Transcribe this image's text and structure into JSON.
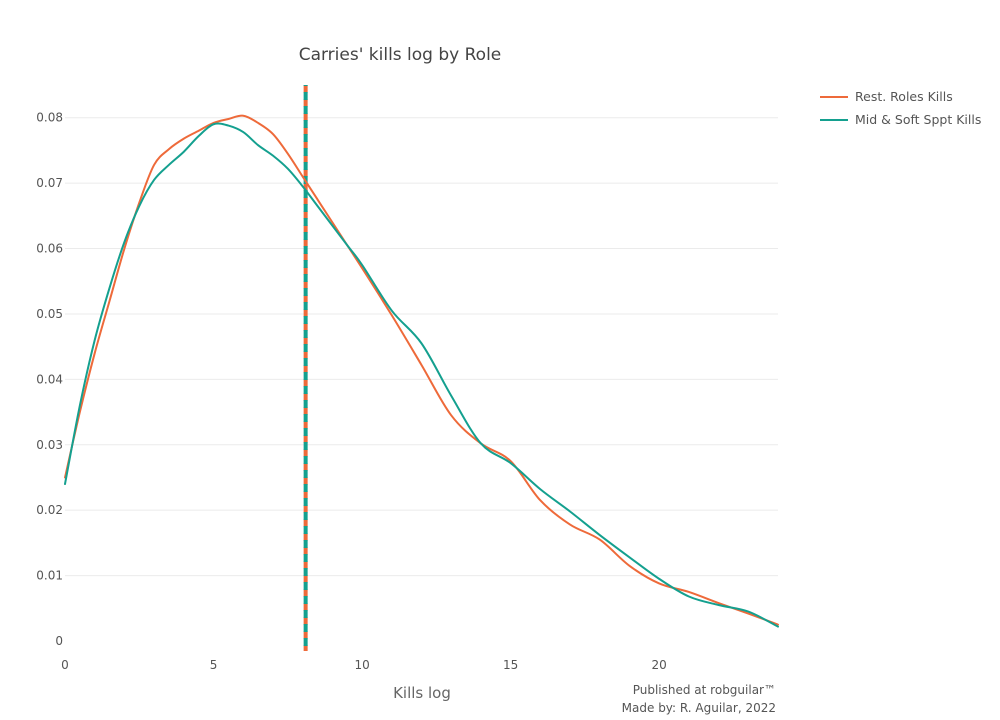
{
  "chart_data": {
    "type": "line",
    "title": "Carries' kills log by Role",
    "xlabel": "Kills log",
    "ylabel": "",
    "xlim": [
      0,
      24
    ],
    "ylim": [
      0,
      0.085
    ],
    "x_ticks": [
      0,
      5,
      10,
      15,
      20
    ],
    "x_tick_labels": [
      "0",
      "5",
      "10",
      "15",
      "20"
    ],
    "y_ticks": [
      0,
      0.01,
      0.02,
      0.03,
      0.04,
      0.05,
      0.06,
      0.07,
      0.08
    ],
    "y_tick_labels": [
      "0",
      "0.01",
      "0.02",
      "0.03",
      "0.04",
      "0.05",
      "0.06",
      "0.07",
      "0.08"
    ],
    "grid": true,
    "legend_position": "top-right",
    "series": [
      {
        "name": "Rest. Roles Kills",
        "color": "#EE6A3A",
        "x": [
          0,
          0.5,
          1,
          1.5,
          2,
          2.5,
          3,
          3.5,
          4,
          4.5,
          5,
          5.5,
          6,
          6.5,
          7,
          7.5,
          8,
          8.5,
          9,
          9.5,
          10,
          11,
          12,
          13,
          14,
          15,
          16,
          17,
          18,
          19,
          20,
          21,
          22,
          23,
          24
        ],
        "y": [
          0.025,
          0.035,
          0.044,
          0.052,
          0.06,
          0.067,
          0.0728,
          0.0752,
          0.0768,
          0.078,
          0.0792,
          0.0798,
          0.0803,
          0.0792,
          0.0775,
          0.0745,
          0.071,
          0.0675,
          0.064,
          0.0605,
          0.057,
          0.0498,
          0.0422,
          0.0345,
          0.0302,
          0.0275,
          0.0215,
          0.0178,
          0.0155,
          0.0115,
          0.0088,
          0.0075,
          0.0058,
          0.0042,
          0.0025
        ]
      },
      {
        "name": "Mid & Soft Sppt Kills",
        "color": "#14A08F",
        "x": [
          0,
          0.5,
          1,
          1.5,
          2,
          2.5,
          3,
          3.5,
          4,
          4.5,
          5,
          5.5,
          6,
          6.5,
          7,
          7.5,
          8,
          8.5,
          9,
          9.5,
          10,
          11,
          12,
          13,
          14,
          15,
          16,
          17,
          18,
          19,
          20,
          21,
          22,
          23,
          24
        ],
        "y": [
          0.024,
          0.036,
          0.046,
          0.054,
          0.061,
          0.0665,
          0.0705,
          0.0728,
          0.0748,
          0.0772,
          0.079,
          0.0788,
          0.0778,
          0.0758,
          0.0742,
          0.0722,
          0.0695,
          0.0665,
          0.0635,
          0.0605,
          0.0575,
          0.0505,
          0.0455,
          0.0375,
          0.0302,
          0.0272,
          0.0232,
          0.0198,
          0.0162,
          0.0128,
          0.0095,
          0.0068,
          0.0055,
          0.0045,
          0.0022
        ]
      }
    ],
    "vlines": [
      {
        "x": 8.1,
        "colors": [
          "#EE6A3A",
          "#14A08F"
        ],
        "dash": true
      }
    ]
  },
  "credits": {
    "line1": "Published at robguilar™",
    "line2": "Made by:  R. Aguilar, 2022"
  }
}
